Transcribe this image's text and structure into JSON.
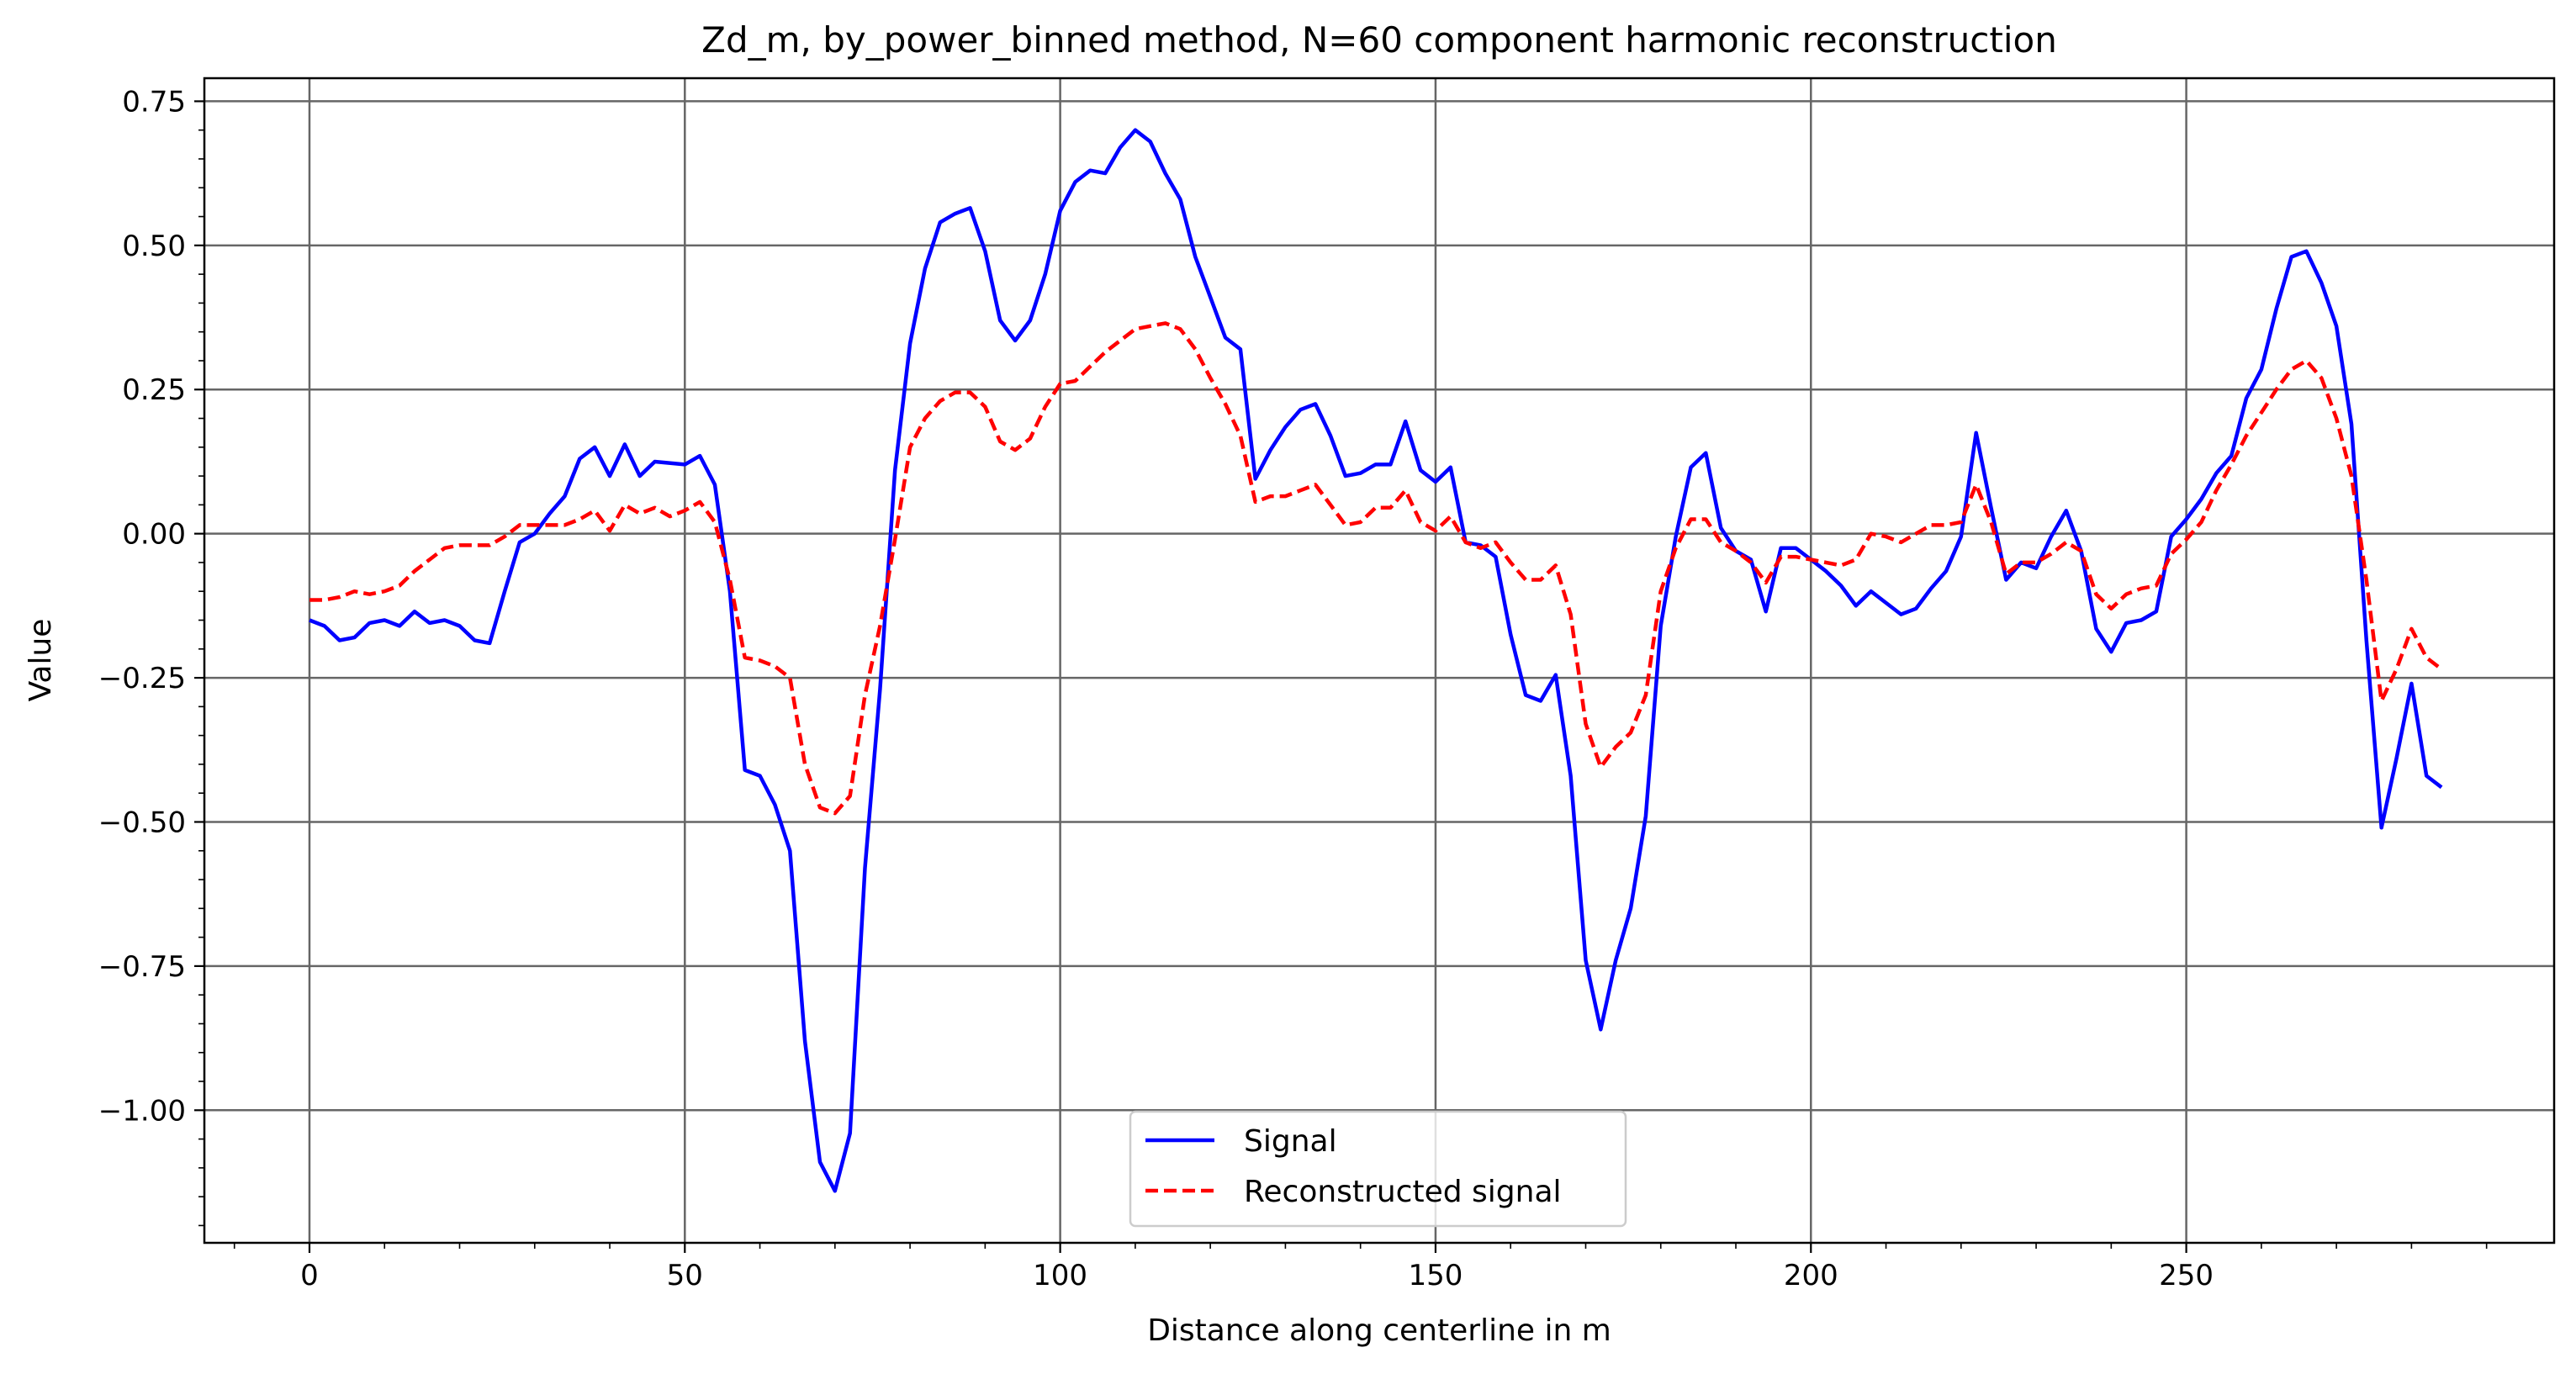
{
  "chart_data": {
    "type": "line",
    "title": "Zd_m, by_power_binned method, N=60 component harmonic reconstruction",
    "xlabel": "Distance along centerline in m",
    "ylabel": "Value",
    "xlim": [
      -14,
      299
    ],
    "ylim": [
      -1.23,
      0.79
    ],
    "x_ticks": [
      0,
      50,
      100,
      150,
      200,
      250
    ],
    "x_tick_labels": [
      "0",
      "50",
      "100",
      "150",
      "200",
      "250"
    ],
    "y_ticks": [
      0.75,
      0.5,
      0.25,
      0.0,
      -0.25,
      -0.5,
      -0.75,
      -1.0
    ],
    "y_tick_labels": [
      "0.75",
      "0.50",
      "0.25",
      "0.00",
      "−0.25",
      "−0.50",
      "−0.75",
      "−1.00"
    ],
    "grid": true,
    "legend_position": "bottom-center",
    "series": [
      {
        "name": "Signal",
        "color": "#0000ff",
        "style": "solid",
        "points": [
          [
            0,
            -0.15
          ],
          [
            2,
            -0.16
          ],
          [
            4,
            -0.185
          ],
          [
            6,
            -0.18
          ],
          [
            8,
            -0.155
          ],
          [
            10,
            -0.15
          ],
          [
            12,
            -0.16
          ],
          [
            14,
            -0.135
          ],
          [
            16,
            -0.155
          ],
          [
            18,
            -0.15
          ],
          [
            20,
            -0.16
          ],
          [
            22,
            -0.185
          ],
          [
            24,
            -0.19
          ],
          [
            26,
            -0.1
          ],
          [
            28,
            -0.015
          ],
          [
            30,
            0.0
          ],
          [
            32,
            0.035
          ],
          [
            34,
            0.065
          ],
          [
            36,
            0.13
          ],
          [
            38,
            0.15
          ],
          [
            40,
            0.1
          ],
          [
            42,
            0.155
          ],
          [
            44,
            0.1
          ],
          [
            46,
            0.125
          ],
          [
            50,
            0.12
          ],
          [
            52,
            0.135
          ],
          [
            54,
            0.085
          ],
          [
            56,
            -0.1
          ],
          [
            58,
            -0.41
          ],
          [
            60,
            -0.42
          ],
          [
            62,
            -0.47
          ],
          [
            64,
            -0.55
          ],
          [
            66,
            -0.88
          ],
          [
            68,
            -1.09
          ],
          [
            70,
            -1.14
          ],
          [
            72,
            -1.04
          ],
          [
            74,
            -0.58
          ],
          [
            76,
            -0.27
          ],
          [
            78,
            0.11
          ],
          [
            80,
            0.33
          ],
          [
            82,
            0.46
          ],
          [
            84,
            0.54
          ],
          [
            86,
            0.555
          ],
          [
            88,
            0.565
          ],
          [
            90,
            0.49
          ],
          [
            92,
            0.37
          ],
          [
            94,
            0.335
          ],
          [
            96,
            0.37
          ],
          [
            98,
            0.45
          ],
          [
            100,
            0.56
          ],
          [
            102,
            0.61
          ],
          [
            104,
            0.63
          ],
          [
            106,
            0.625
          ],
          [
            108,
            0.67
          ],
          [
            110,
            0.7
          ],
          [
            112,
            0.68
          ],
          [
            114,
            0.625
          ],
          [
            116,
            0.58
          ],
          [
            118,
            0.48
          ],
          [
            120,
            0.41
          ],
          [
            122,
            0.34
          ],
          [
            124,
            0.32
          ],
          [
            126,
            0.095
          ],
          [
            128,
            0.145
          ],
          [
            130,
            0.185
          ],
          [
            132,
            0.215
          ],
          [
            134,
            0.225
          ],
          [
            136,
            0.17
          ],
          [
            138,
            0.1
          ],
          [
            140,
            0.105
          ],
          [
            142,
            0.12
          ],
          [
            144,
            0.12
          ],
          [
            146,
            0.195
          ],
          [
            148,
            0.11
          ],
          [
            150,
            0.09
          ],
          [
            152,
            0.115
          ],
          [
            154,
            -0.015
          ],
          [
            156,
            -0.02
          ],
          [
            158,
            -0.04
          ],
          [
            160,
            -0.175
          ],
          [
            162,
            -0.28
          ],
          [
            164,
            -0.29
          ],
          [
            166,
            -0.245
          ],
          [
            168,
            -0.42
          ],
          [
            170,
            -0.74
          ],
          [
            172,
            -0.86
          ],
          [
            174,
            -0.74
          ],
          [
            176,
            -0.65
          ],
          [
            178,
            -0.49
          ],
          [
            180,
            -0.16
          ],
          [
            182,
            -0.005
          ],
          [
            184,
            0.115
          ],
          [
            186,
            0.14
          ],
          [
            188,
            0.01
          ],
          [
            190,
            -0.03
          ],
          [
            192,
            -0.045
          ],
          [
            194,
            -0.135
          ],
          [
            196,
            -0.025
          ],
          [
            198,
            -0.025
          ],
          [
            200,
            -0.045
          ],
          [
            202,
            -0.065
          ],
          [
            204,
            -0.09
          ],
          [
            206,
            -0.125
          ],
          [
            208,
            -0.1
          ],
          [
            210,
            -0.12
          ],
          [
            212,
            -0.14
          ],
          [
            214,
            -0.13
          ],
          [
            216,
            -0.095
          ],
          [
            218,
            -0.065
          ],
          [
            220,
            -0.005
          ],
          [
            222,
            0.175
          ],
          [
            224,
            0.045
          ],
          [
            226,
            -0.08
          ],
          [
            228,
            -0.05
          ],
          [
            230,
            -0.06
          ],
          [
            232,
            -0.005
          ],
          [
            234,
            0.04
          ],
          [
            236,
            -0.03
          ],
          [
            238,
            -0.165
          ],
          [
            240,
            -0.205
          ],
          [
            242,
            -0.155
          ],
          [
            244,
            -0.15
          ],
          [
            246,
            -0.135
          ],
          [
            248,
            -0.005
          ],
          [
            250,
            0.025
          ],
          [
            252,
            0.06
          ],
          [
            254,
            0.105
          ],
          [
            256,
            0.135
          ],
          [
            258,
            0.235
          ],
          [
            260,
            0.285
          ],
          [
            262,
            0.39
          ],
          [
            264,
            0.48
          ],
          [
            266,
            0.49
          ],
          [
            268,
            0.435
          ],
          [
            270,
            0.36
          ],
          [
            272,
            0.19
          ],
          [
            274,
            -0.185
          ],
          [
            276,
            -0.51
          ],
          [
            278,
            -0.39
          ],
          [
            280,
            -0.26
          ],
          [
            282,
            -0.42
          ],
          [
            284,
            -0.44
          ]
        ]
      },
      {
        "name": "Reconstructed signal",
        "color": "#ff0000",
        "style": "dashed",
        "points": [
          [
            0,
            -0.115
          ],
          [
            2,
            -0.115
          ],
          [
            4,
            -0.11
          ],
          [
            6,
            -0.1
          ],
          [
            8,
            -0.105
          ],
          [
            10,
            -0.1
          ],
          [
            12,
            -0.09
          ],
          [
            14,
            -0.065
          ],
          [
            16,
            -0.045
          ],
          [
            18,
            -0.025
          ],
          [
            20,
            -0.02
          ],
          [
            22,
            -0.02
          ],
          [
            24,
            -0.02
          ],
          [
            26,
            -0.005
          ],
          [
            28,
            0.015
          ],
          [
            30,
            0.015
          ],
          [
            32,
            0.015
          ],
          [
            34,
            0.015
          ],
          [
            36,
            0.025
          ],
          [
            38,
            0.04
          ],
          [
            40,
            0.005
          ],
          [
            42,
            0.05
          ],
          [
            44,
            0.035
          ],
          [
            46,
            0.045
          ],
          [
            48,
            0.03
          ],
          [
            50,
            0.04
          ],
          [
            52,
            0.055
          ],
          [
            54,
            0.02
          ],
          [
            56,
            -0.08
          ],
          [
            58,
            -0.215
          ],
          [
            60,
            -0.22
          ],
          [
            62,
            -0.23
          ],
          [
            64,
            -0.25
          ],
          [
            66,
            -0.4
          ],
          [
            68,
            -0.475
          ],
          [
            70,
            -0.485
          ],
          [
            72,
            -0.455
          ],
          [
            74,
            -0.28
          ],
          [
            76,
            -0.16
          ],
          [
            78,
            -0.01
          ],
          [
            80,
            0.15
          ],
          [
            82,
            0.2
          ],
          [
            84,
            0.23
          ],
          [
            86,
            0.245
          ],
          [
            88,
            0.245
          ],
          [
            90,
            0.22
          ],
          [
            92,
            0.16
          ],
          [
            94,
            0.145
          ],
          [
            96,
            0.165
          ],
          [
            98,
            0.22
          ],
          [
            100,
            0.26
          ],
          [
            102,
            0.265
          ],
          [
            104,
            0.29
          ],
          [
            106,
            0.315
          ],
          [
            108,
            0.335
          ],
          [
            110,
            0.355
          ],
          [
            112,
            0.36
          ],
          [
            114,
            0.365
          ],
          [
            116,
            0.355
          ],
          [
            118,
            0.32
          ],
          [
            120,
            0.27
          ],
          [
            122,
            0.225
          ],
          [
            124,
            0.17
          ],
          [
            126,
            0.055
          ],
          [
            128,
            0.065
          ],
          [
            130,
            0.065
          ],
          [
            132,
            0.075
          ],
          [
            134,
            0.085
          ],
          [
            136,
            0.05
          ],
          [
            138,
            0.015
          ],
          [
            140,
            0.02
          ],
          [
            142,
            0.045
          ],
          [
            144,
            0.045
          ],
          [
            146,
            0.075
          ],
          [
            148,
            0.02
          ],
          [
            150,
            0.005
          ],
          [
            152,
            0.03
          ],
          [
            154,
            -0.015
          ],
          [
            156,
            -0.025
          ],
          [
            158,
            -0.015
          ],
          [
            160,
            -0.05
          ],
          [
            162,
            -0.08
          ],
          [
            164,
            -0.08
          ],
          [
            166,
            -0.055
          ],
          [
            168,
            -0.14
          ],
          [
            170,
            -0.33
          ],
          [
            172,
            -0.405
          ],
          [
            174,
            -0.37
          ],
          [
            176,
            -0.345
          ],
          [
            178,
            -0.28
          ],
          [
            180,
            -0.1
          ],
          [
            182,
            -0.025
          ],
          [
            184,
            0.025
          ],
          [
            186,
            0.025
          ],
          [
            188,
            -0.015
          ],
          [
            190,
            -0.03
          ],
          [
            192,
            -0.05
          ],
          [
            194,
            -0.085
          ],
          [
            196,
            -0.04
          ],
          [
            198,
            -0.04
          ],
          [
            200,
            -0.045
          ],
          [
            202,
            -0.05
          ],
          [
            204,
            -0.055
          ],
          [
            206,
            -0.045
          ],
          [
            208,
            0.0
          ],
          [
            210,
            -0.005
          ],
          [
            212,
            -0.015
          ],
          [
            214,
            0.0
          ],
          [
            216,
            0.015
          ],
          [
            218,
            0.015
          ],
          [
            220,
            0.02
          ],
          [
            222,
            0.085
          ],
          [
            224,
            0.02
          ],
          [
            226,
            -0.07
          ],
          [
            228,
            -0.05
          ],
          [
            230,
            -0.05
          ],
          [
            232,
            -0.035
          ],
          [
            234,
            -0.015
          ],
          [
            236,
            -0.03
          ],
          [
            238,
            -0.105
          ],
          [
            240,
            -0.13
          ],
          [
            242,
            -0.105
          ],
          [
            244,
            -0.095
          ],
          [
            246,
            -0.09
          ],
          [
            248,
            -0.035
          ],
          [
            250,
            -0.01
          ],
          [
            252,
            0.02
          ],
          [
            254,
            0.075
          ],
          [
            256,
            0.12
          ],
          [
            258,
            0.17
          ],
          [
            260,
            0.21
          ],
          [
            262,
            0.25
          ],
          [
            264,
            0.285
          ],
          [
            266,
            0.3
          ],
          [
            268,
            0.27
          ],
          [
            270,
            0.2
          ],
          [
            272,
            0.1
          ],
          [
            274,
            -0.08
          ],
          [
            276,
            -0.29
          ],
          [
            278,
            -0.235
          ],
          [
            280,
            -0.165
          ],
          [
            282,
            -0.215
          ],
          [
            284,
            -0.235
          ]
        ]
      }
    ]
  }
}
